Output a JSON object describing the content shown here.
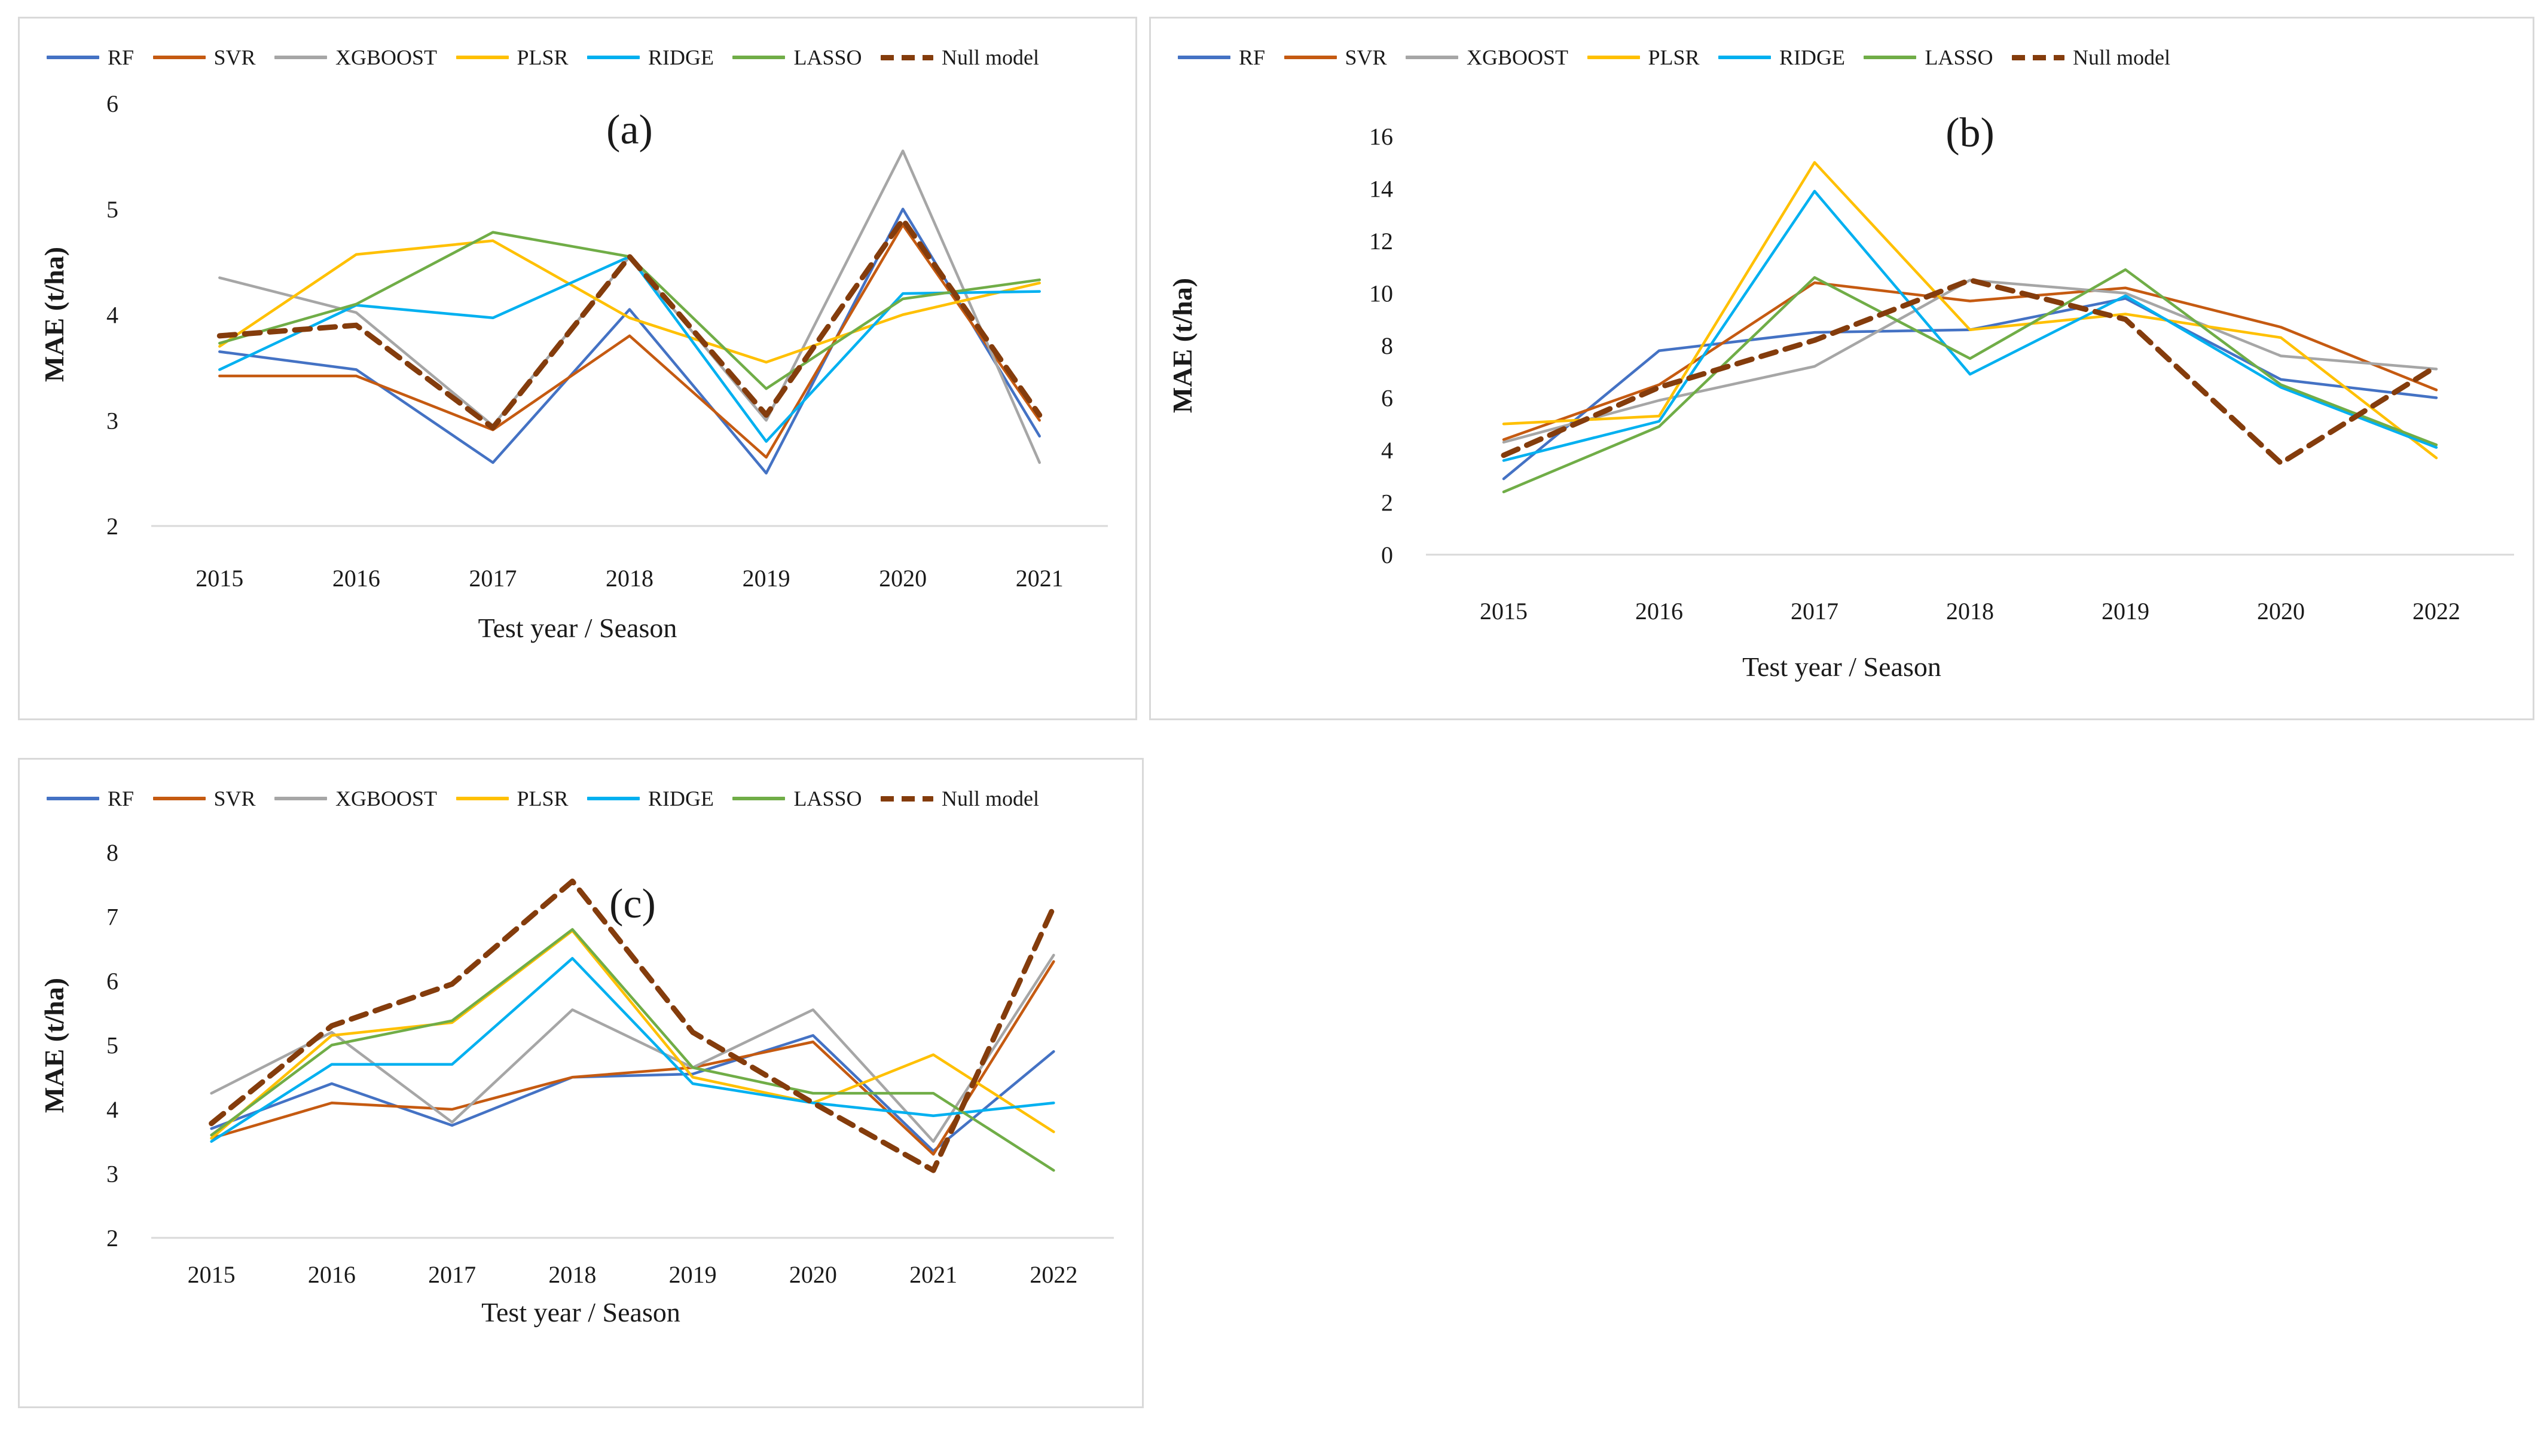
{
  "figure": {
    "background": "#ffffff",
    "panel_border_color": "#d9d9d9",
    "axis_line_color": "#d9d9d9",
    "text_color": "#1a1a1a"
  },
  "legend_labels": [
    "RF",
    "SVR",
    "XGBOOST",
    "PLSR",
    "RIDGE",
    "LASSO",
    "Null model"
  ],
  "chart_data": [
    {
      "id": "a",
      "type": "line",
      "title": "(a)",
      "xlabel": "Test year / Season",
      "ylabel": "MAE (t/ha)",
      "ylim": [
        2,
        6
      ],
      "yticks": [
        2,
        3,
        4,
        5,
        6
      ],
      "grid": false,
      "legend_position": "top",
      "categories": [
        "2015",
        "2016",
        "2017",
        "2018",
        "2019",
        "2020",
        "2021"
      ],
      "series": [
        {
          "name": "RF",
          "color": "#4472C4",
          "dashed": false,
          "values": [
            3.65,
            3.48,
            2.6,
            4.05,
            2.5,
            5.0,
            2.85
          ]
        },
        {
          "name": "SVR",
          "color": "#C55A11",
          "dashed": false,
          "values": [
            3.42,
            3.42,
            2.91,
            3.8,
            2.65,
            4.85,
            3.0
          ]
        },
        {
          "name": "XGBOOST",
          "color": "#A6A6A6",
          "dashed": false,
          "values": [
            4.35,
            4.02,
            2.95,
            4.55,
            3.0,
            5.55,
            2.6
          ]
        },
        {
          "name": "PLSR",
          "color": "#FFC000",
          "dashed": false,
          "values": [
            3.7,
            4.57,
            4.7,
            3.97,
            3.55,
            4.0,
            4.3
          ]
        },
        {
          "name": "RIDGE",
          "color": "#00B0F0",
          "dashed": false,
          "values": [
            3.48,
            4.09,
            3.97,
            4.55,
            2.8,
            4.2,
            4.22
          ]
        },
        {
          "name": "LASSO",
          "color": "#70AD47",
          "dashed": false,
          "values": [
            3.73,
            4.1,
            4.78,
            4.55,
            3.3,
            4.15,
            4.33
          ]
        },
        {
          "name": "Null model",
          "color": "#843C0C",
          "dashed": true,
          "values": [
            3.8,
            3.9,
            2.93,
            4.55,
            3.05,
            4.9,
            3.05
          ]
        }
      ]
    },
    {
      "id": "b",
      "type": "line",
      "title": "(b)",
      "xlabel": "Test year / Season",
      "ylabel": "MAE (t/ha)",
      "ylim": [
        0,
        16
      ],
      "yticks": [
        0,
        2,
        4,
        6,
        8,
        10,
        12,
        14,
        16
      ],
      "grid": false,
      "legend_position": "top",
      "categories": [
        "2015",
        "2016",
        "2017",
        "2018",
        "2019",
        "2020",
        "2022"
      ],
      "series": [
        {
          "name": "RF",
          "color": "#4472C4",
          "dashed": false,
          "values": [
            2.9,
            7.8,
            8.5,
            8.6,
            9.8,
            6.7,
            6.0
          ]
        },
        {
          "name": "SVR",
          "color": "#C55A11",
          "dashed": false,
          "values": [
            4.4,
            6.5,
            10.4,
            9.7,
            10.2,
            8.7,
            6.3
          ]
        },
        {
          "name": "XGBOOST",
          "color": "#A6A6A6",
          "dashed": false,
          "values": [
            4.3,
            5.9,
            7.2,
            10.5,
            10.0,
            7.6,
            7.1
          ]
        },
        {
          "name": "PLSR",
          "color": "#FFC000",
          "dashed": false,
          "values": [
            5.0,
            5.3,
            15.0,
            8.6,
            9.2,
            8.3,
            3.7
          ]
        },
        {
          "name": "RIDGE",
          "color": "#00B0F0",
          "dashed": false,
          "values": [
            3.6,
            5.1,
            13.9,
            6.9,
            9.9,
            6.4,
            4.1
          ]
        },
        {
          "name": "LASSO",
          "color": "#70AD47",
          "dashed": false,
          "values": [
            2.4,
            4.9,
            10.6,
            7.5,
            10.9,
            6.5,
            4.2
          ]
        },
        {
          "name": "Null model",
          "color": "#843C0C",
          "dashed": true,
          "values": [
            3.8,
            6.4,
            8.2,
            10.5,
            9.0,
            3.5,
            7.2
          ]
        }
      ]
    },
    {
      "id": "c",
      "type": "line",
      "title": "(c)",
      "xlabel": "Test year / Season",
      "ylabel": "MAE (t/ha)",
      "ylim": [
        2,
        8
      ],
      "yticks": [
        2,
        3,
        4,
        5,
        6,
        7,
        8
      ],
      "grid": false,
      "legend_position": "top",
      "categories": [
        "2015",
        "2016",
        "2017",
        "2018",
        "2019",
        "2020",
        "2021",
        "2022"
      ],
      "series": [
        {
          "name": "RF",
          "color": "#4472C4",
          "dashed": false,
          "values": [
            3.7,
            4.4,
            3.75,
            4.5,
            4.55,
            5.15,
            3.35,
            4.9
          ]
        },
        {
          "name": "SVR",
          "color": "#C55A11",
          "dashed": false,
          "values": [
            3.55,
            4.1,
            4.0,
            4.5,
            4.65,
            5.05,
            3.3,
            6.3
          ]
        },
        {
          "name": "XGBOOST",
          "color": "#A6A6A6",
          "dashed": false,
          "values": [
            4.25,
            5.2,
            3.8,
            5.55,
            4.65,
            5.55,
            3.5,
            6.4
          ]
        },
        {
          "name": "PLSR",
          "color": "#FFC000",
          "dashed": false,
          "values": [
            3.55,
            5.15,
            5.35,
            6.78,
            4.5,
            4.1,
            4.85,
            3.65
          ]
        },
        {
          "name": "RIDGE",
          "color": "#00B0F0",
          "dashed": false,
          "values": [
            3.5,
            4.7,
            4.7,
            6.35,
            4.4,
            4.1,
            3.9,
            4.1
          ]
        },
        {
          "name": "LASSO",
          "color": "#70AD47",
          "dashed": false,
          "values": [
            3.6,
            5.0,
            5.38,
            6.8,
            4.65,
            4.25,
            4.25,
            3.05
          ]
        },
        {
          "name": "Null model",
          "color": "#843C0C",
          "dashed": true,
          "values": [
            3.78,
            5.3,
            5.95,
            7.55,
            5.2,
            4.1,
            3.05,
            7.15
          ]
        }
      ]
    }
  ]
}
